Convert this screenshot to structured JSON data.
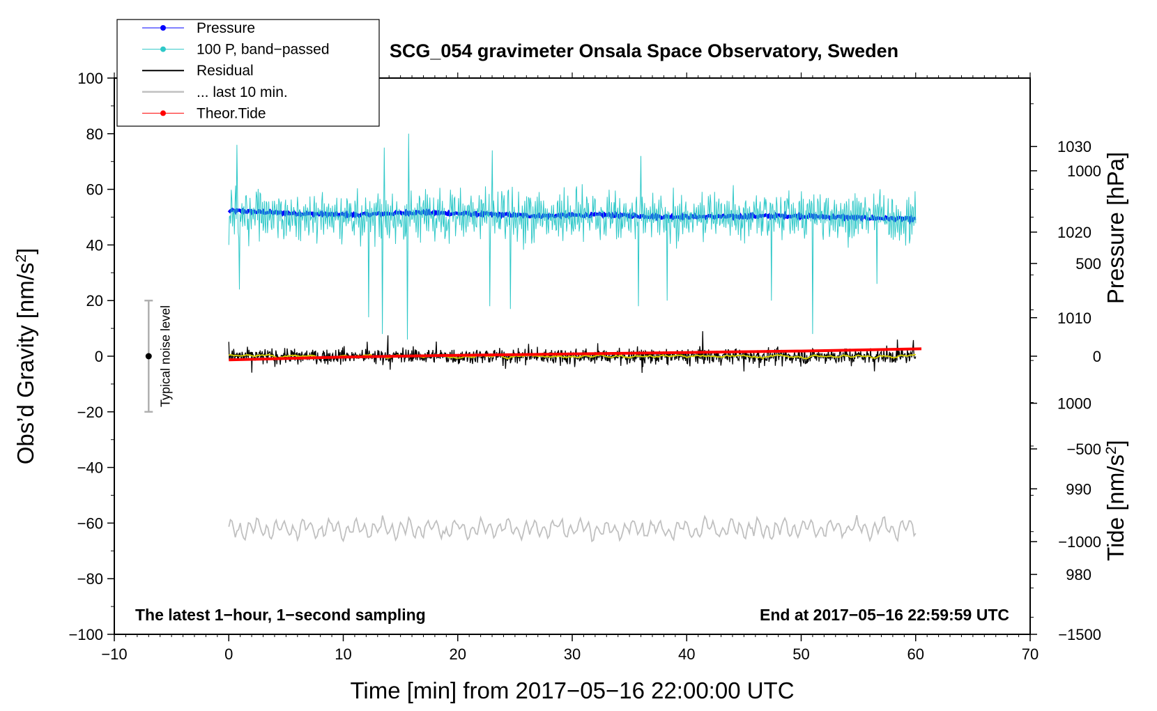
{
  "chart_data": {
    "type": "line",
    "title": "SCG_054 gravimeter Onsala Space Observatory, Sweden",
    "xlabel": "Time [min] from 2017−05−16 22:00:00 UTC",
    "ylabel_left": "Obs’d Gravity [nm/s²]",
    "ylabel_right_top": "Pressure [hPa]",
    "ylabel_right_bottom": "Tide [nm/s²]",
    "xlim": [
      -10,
      70
    ],
    "ylim": [
      -100,
      100
    ],
    "pressure_ylim": [
      973,
      1038
    ],
    "tide_ylim": [
      -1500,
      1500
    ],
    "x_ticks": [
      "−10",
      "0",
      "10",
      "20",
      "30",
      "40",
      "50",
      "60",
      "70"
    ],
    "y_ticks": [
      "100",
      "80",
      "60",
      "40",
      "20",
      "0",
      "−20",
      "−40",
      "−60",
      "−80",
      "−100"
    ],
    "pressure_ticks": [
      "1030",
      "1020",
      "1010",
      "1000",
      "990",
      "980"
    ],
    "tide_ticks": [
      "1000",
      "500",
      "0",
      "−500",
      "−1000",
      "−1500"
    ],
    "legend": {
      "placement": "top-left",
      "entries": [
        "Pressure",
        "100 P, band−passed",
        "Residual",
        "... last 10 min.",
        "Theor.Tide"
      ]
    },
    "series": [
      {
        "name": "Pressure",
        "color": "#0000ff",
        "axis": "pressure",
        "x_range": [
          0,
          60
        ],
        "approx_value": 1022,
        "values": [
          1022.5,
          1022.2,
          1022.0,
          1022.3,
          1022.1,
          1021.9,
          1022.0,
          1021.8,
          1021.8,
          1021.9,
          1021.7,
          1021.5
        ]
      },
      {
        "name": "100 P, band−passed",
        "color": "#2ec8c8",
        "axis": "gravity",
        "x_range": [
          0,
          60
        ],
        "baseline": 50,
        "min": 8,
        "max": 76
      },
      {
        "name": "Residual",
        "color": "#000000",
        "axis": "gravity",
        "x_range": [
          0,
          60
        ],
        "baseline": 0,
        "min": -6,
        "max": 9
      },
      {
        "name": "Residual smoothed",
        "color": "#d6d000",
        "axis": "gravity",
        "x_range": [
          0,
          60
        ],
        "baseline": 0
      },
      {
        "name": "... last 10 min.",
        "color": "#c0c0c0",
        "axis": "gravity",
        "x_range": [
          0,
          60
        ],
        "baseline": -62,
        "min": -68,
        "max": -56
      },
      {
        "name": "Theor.Tide",
        "color": "#ff0000",
        "axis": "tide",
        "x": [
          0,
          10,
          20,
          30,
          40,
          50,
          60.5
        ],
        "values": [
          -20,
          -5,
          5,
          12,
          20,
          28,
          40
        ]
      }
    ],
    "noise_bar": {
      "x": -7,
      "center": 0,
      "range": [
        -20,
        20
      ],
      "label": "Typical noise level"
    },
    "annotations": {
      "left": "The latest 1−hour, 1−second sampling",
      "right": "End at 2017−05−16 22:59:59 UTC"
    },
    "grid": false
  }
}
